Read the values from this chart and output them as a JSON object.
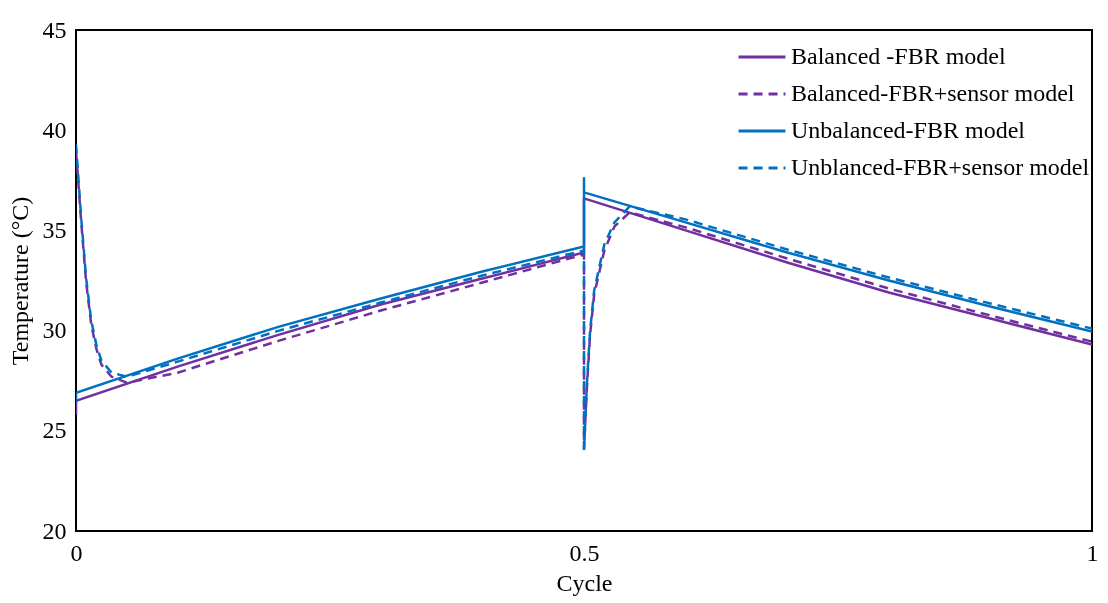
{
  "chart_data": {
    "type": "line",
    "xlabel": "Cycle",
    "ylabel": "Temperature (°C)",
    "xlim": [
      0,
      1
    ],
    "xticks": [
      0,
      0.5,
      1
    ],
    "ylim": [
      20,
      45
    ],
    "yticks": [
      20,
      25,
      30,
      35,
      40,
      45
    ],
    "grid": false,
    "legend": "top right",
    "series": [
      {
        "name": "Balanced -FBR model",
        "color": "#7030a0",
        "line_style": "solid",
        "x": [
          0,
          0,
          0.1,
          0.2,
          0.3,
          0.4,
          0.5,
          0.5,
          0.6,
          0.7,
          0.8,
          0.9,
          1
        ],
        "values": [
          25.8,
          26.5,
          28.2,
          29.8,
          31.3,
          32.6,
          33.9,
          36.6,
          35.0,
          33.4,
          31.9,
          30.6,
          29.3
        ]
      },
      {
        "name": "Balanced-FBR+sensor model",
        "color": "#7030a0",
        "line_style": "dashed",
        "x": [
          0,
          0.005,
          0.01,
          0.015,
          0.02,
          0.025,
          0.035,
          0.05,
          0.1,
          0.2,
          0.3,
          0.4,
          0.5,
          0.5,
          0.503,
          0.506,
          0.51,
          0.52,
          0.53,
          0.545,
          0.6,
          0.7,
          0.8,
          0.9,
          1
        ],
        "values": [
          39.0,
          35.5,
          32.4,
          30.3,
          29.1,
          28.3,
          27.7,
          27.4,
          27.9,
          29.5,
          31.0,
          32.4,
          33.8,
          24.1,
          27.3,
          29.8,
          31.8,
          34.0,
          35.2,
          35.9,
          35.15,
          33.6,
          32.1,
          30.75,
          29.45
        ]
      },
      {
        "name": "Unbalanced-FBR model",
        "color": "#0070c0",
        "line_style": "solid",
        "x": [
          0,
          0,
          0.1,
          0.2,
          0.3,
          0.4,
          0.5,
          0.5,
          0.5,
          0.6,
          0.7,
          0.8,
          0.9,
          1
        ],
        "values": [
          26.4,
          26.9,
          28.6,
          30.2,
          31.6,
          32.95,
          34.2,
          37.6,
          36.9,
          35.4,
          33.9,
          32.5,
          31.2,
          29.95
        ]
      },
      {
        "name": "Unblanced-FBR+sensor model",
        "color": "#0070c0",
        "line_style": "dashed",
        "x": [
          0,
          0.005,
          0.01,
          0.015,
          0.02,
          0.025,
          0.035,
          0.05,
          0.1,
          0.2,
          0.3,
          0.4,
          0.5,
          0.5,
          0.503,
          0.506,
          0.51,
          0.52,
          0.53,
          0.545,
          0.6,
          0.7,
          0.8,
          0.9,
          1
        ],
        "values": [
          39.3,
          35.7,
          32.6,
          30.5,
          29.3,
          28.5,
          27.9,
          27.7,
          28.45,
          30.0,
          31.4,
          32.75,
          34.0,
          24.0,
          27.5,
          30.0,
          32.0,
          34.3,
          35.4,
          36.2,
          35.55,
          34.05,
          32.65,
          31.35,
          30.1
        ]
      }
    ]
  }
}
